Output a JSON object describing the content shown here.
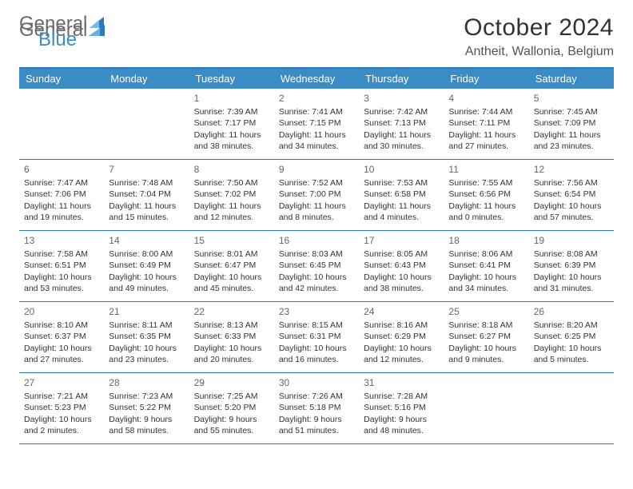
{
  "logo": {
    "text_general": "General",
    "text_blue": "Blue"
  },
  "title": "October 2024",
  "location": "Antheit, Wallonia, Belgium",
  "colors": {
    "accent": "#3b8bc4",
    "accent_dark": "#2e7ab8",
    "text": "#333333",
    "muted": "#666666",
    "logo_gray": "#6b6b6b"
  },
  "day_names": [
    "Sunday",
    "Monday",
    "Tuesday",
    "Wednesday",
    "Thursday",
    "Friday",
    "Saturday"
  ],
  "weeks": [
    [
      null,
      null,
      {
        "n": "1",
        "sr": "Sunrise: 7:39 AM",
        "ss": "Sunset: 7:17 PM",
        "dl": "Daylight: 11 hours and 38 minutes."
      },
      {
        "n": "2",
        "sr": "Sunrise: 7:41 AM",
        "ss": "Sunset: 7:15 PM",
        "dl": "Daylight: 11 hours and 34 minutes."
      },
      {
        "n": "3",
        "sr": "Sunrise: 7:42 AM",
        "ss": "Sunset: 7:13 PM",
        "dl": "Daylight: 11 hours and 30 minutes."
      },
      {
        "n": "4",
        "sr": "Sunrise: 7:44 AM",
        "ss": "Sunset: 7:11 PM",
        "dl": "Daylight: 11 hours and 27 minutes."
      },
      {
        "n": "5",
        "sr": "Sunrise: 7:45 AM",
        "ss": "Sunset: 7:09 PM",
        "dl": "Daylight: 11 hours and 23 minutes."
      }
    ],
    [
      {
        "n": "6",
        "sr": "Sunrise: 7:47 AM",
        "ss": "Sunset: 7:06 PM",
        "dl": "Daylight: 11 hours and 19 minutes."
      },
      {
        "n": "7",
        "sr": "Sunrise: 7:48 AM",
        "ss": "Sunset: 7:04 PM",
        "dl": "Daylight: 11 hours and 15 minutes."
      },
      {
        "n": "8",
        "sr": "Sunrise: 7:50 AM",
        "ss": "Sunset: 7:02 PM",
        "dl": "Daylight: 11 hours and 12 minutes."
      },
      {
        "n": "9",
        "sr": "Sunrise: 7:52 AM",
        "ss": "Sunset: 7:00 PM",
        "dl": "Daylight: 11 hours and 8 minutes."
      },
      {
        "n": "10",
        "sr": "Sunrise: 7:53 AM",
        "ss": "Sunset: 6:58 PM",
        "dl": "Daylight: 11 hours and 4 minutes."
      },
      {
        "n": "11",
        "sr": "Sunrise: 7:55 AM",
        "ss": "Sunset: 6:56 PM",
        "dl": "Daylight: 11 hours and 0 minutes."
      },
      {
        "n": "12",
        "sr": "Sunrise: 7:56 AM",
        "ss": "Sunset: 6:54 PM",
        "dl": "Daylight: 10 hours and 57 minutes."
      }
    ],
    [
      {
        "n": "13",
        "sr": "Sunrise: 7:58 AM",
        "ss": "Sunset: 6:51 PM",
        "dl": "Daylight: 10 hours and 53 minutes."
      },
      {
        "n": "14",
        "sr": "Sunrise: 8:00 AM",
        "ss": "Sunset: 6:49 PM",
        "dl": "Daylight: 10 hours and 49 minutes."
      },
      {
        "n": "15",
        "sr": "Sunrise: 8:01 AM",
        "ss": "Sunset: 6:47 PM",
        "dl": "Daylight: 10 hours and 45 minutes."
      },
      {
        "n": "16",
        "sr": "Sunrise: 8:03 AM",
        "ss": "Sunset: 6:45 PM",
        "dl": "Daylight: 10 hours and 42 minutes."
      },
      {
        "n": "17",
        "sr": "Sunrise: 8:05 AM",
        "ss": "Sunset: 6:43 PM",
        "dl": "Daylight: 10 hours and 38 minutes."
      },
      {
        "n": "18",
        "sr": "Sunrise: 8:06 AM",
        "ss": "Sunset: 6:41 PM",
        "dl": "Daylight: 10 hours and 34 minutes."
      },
      {
        "n": "19",
        "sr": "Sunrise: 8:08 AM",
        "ss": "Sunset: 6:39 PM",
        "dl": "Daylight: 10 hours and 31 minutes."
      }
    ],
    [
      {
        "n": "20",
        "sr": "Sunrise: 8:10 AM",
        "ss": "Sunset: 6:37 PM",
        "dl": "Daylight: 10 hours and 27 minutes."
      },
      {
        "n": "21",
        "sr": "Sunrise: 8:11 AM",
        "ss": "Sunset: 6:35 PM",
        "dl": "Daylight: 10 hours and 23 minutes."
      },
      {
        "n": "22",
        "sr": "Sunrise: 8:13 AM",
        "ss": "Sunset: 6:33 PM",
        "dl": "Daylight: 10 hours and 20 minutes."
      },
      {
        "n": "23",
        "sr": "Sunrise: 8:15 AM",
        "ss": "Sunset: 6:31 PM",
        "dl": "Daylight: 10 hours and 16 minutes."
      },
      {
        "n": "24",
        "sr": "Sunrise: 8:16 AM",
        "ss": "Sunset: 6:29 PM",
        "dl": "Daylight: 10 hours and 12 minutes."
      },
      {
        "n": "25",
        "sr": "Sunrise: 8:18 AM",
        "ss": "Sunset: 6:27 PM",
        "dl": "Daylight: 10 hours and 9 minutes."
      },
      {
        "n": "26",
        "sr": "Sunrise: 8:20 AM",
        "ss": "Sunset: 6:25 PM",
        "dl": "Daylight: 10 hours and 5 minutes."
      }
    ],
    [
      {
        "n": "27",
        "sr": "Sunrise: 7:21 AM",
        "ss": "Sunset: 5:23 PM",
        "dl": "Daylight: 10 hours and 2 minutes."
      },
      {
        "n": "28",
        "sr": "Sunrise: 7:23 AM",
        "ss": "Sunset: 5:22 PM",
        "dl": "Daylight: 9 hours and 58 minutes."
      },
      {
        "n": "29",
        "sr": "Sunrise: 7:25 AM",
        "ss": "Sunset: 5:20 PM",
        "dl": "Daylight: 9 hours and 55 minutes."
      },
      {
        "n": "30",
        "sr": "Sunrise: 7:26 AM",
        "ss": "Sunset: 5:18 PM",
        "dl": "Daylight: 9 hours and 51 minutes."
      },
      {
        "n": "31",
        "sr": "Sunrise: 7:28 AM",
        "ss": "Sunset: 5:16 PM",
        "dl": "Daylight: 9 hours and 48 minutes."
      },
      null,
      null
    ]
  ]
}
